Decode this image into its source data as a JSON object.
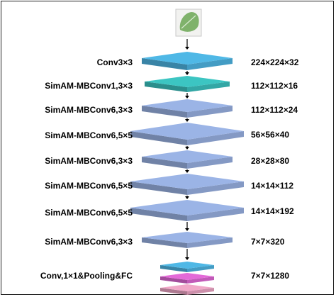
{
  "diagram": {
    "input_image": {
      "name": "leaf-input-image",
      "color": "#7fb26b"
    },
    "layers": [
      {
        "label": "Conv3×3",
        "dims": "224×224×32",
        "color": "#4fb8e6"
      },
      {
        "label": "SimAM-MBConv1,3×3",
        "dims": "112×112×16",
        "color": "#3cc5c2"
      },
      {
        "label": "SimAM-MBConv6,3×3",
        "dims": "112×112×24",
        "color": "#9bb4e6"
      },
      {
        "label": "SimAM-MBConv6,5×5",
        "dims": "56×56×40",
        "color": "#9bb4e6"
      },
      {
        "label": "SimAM-MBConv6,3×3",
        "dims": "28×28×80",
        "color": "#9bb4e6"
      },
      {
        "label": "SimAM-MBConv6,5×5",
        "dims": "14×14×112",
        "color": "#9bb4e6"
      },
      {
        "label": "SimAM-MBConv6,5×5",
        "dims": "14×14×192",
        "color": "#9bb4e6"
      },
      {
        "label": "SimAM-MBConv6,3×3",
        "dims": "7×7×320",
        "color": "#9bb4e6"
      },
      {
        "label": "Conv,1×1&Pooling&FC",
        "dims": "7×7×1280",
        "color": "#4fb8e6"
      }
    ],
    "head_colors": [
      "#4fb8e6",
      "#e36ad8",
      "#f0a8c8"
    ]
  }
}
